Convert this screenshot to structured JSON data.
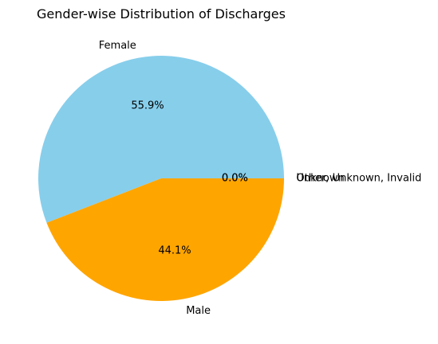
{
  "chart_data": {
    "type": "pie",
    "title": "Gender-wise Distribution of Discharges",
    "slices": [
      {
        "label": "Female",
        "value": 55.9,
        "pct_label": "55.9%",
        "color": "#87CEEB"
      },
      {
        "label": "Male",
        "value": 44.1,
        "pct_label": "44.1%",
        "color": "#FFA500"
      },
      {
        "label": "Unknown",
        "value": 0.0,
        "pct_label": "0.0%",
        "color": "#90EE90"
      },
      {
        "label": "Other, Unknown, Invalid",
        "value": 0.0,
        "pct_label": "0.0%",
        "color": "#FF6347"
      }
    ],
    "start_angle_deg": 0,
    "direction": "counterclockwise",
    "legend": "none"
  }
}
